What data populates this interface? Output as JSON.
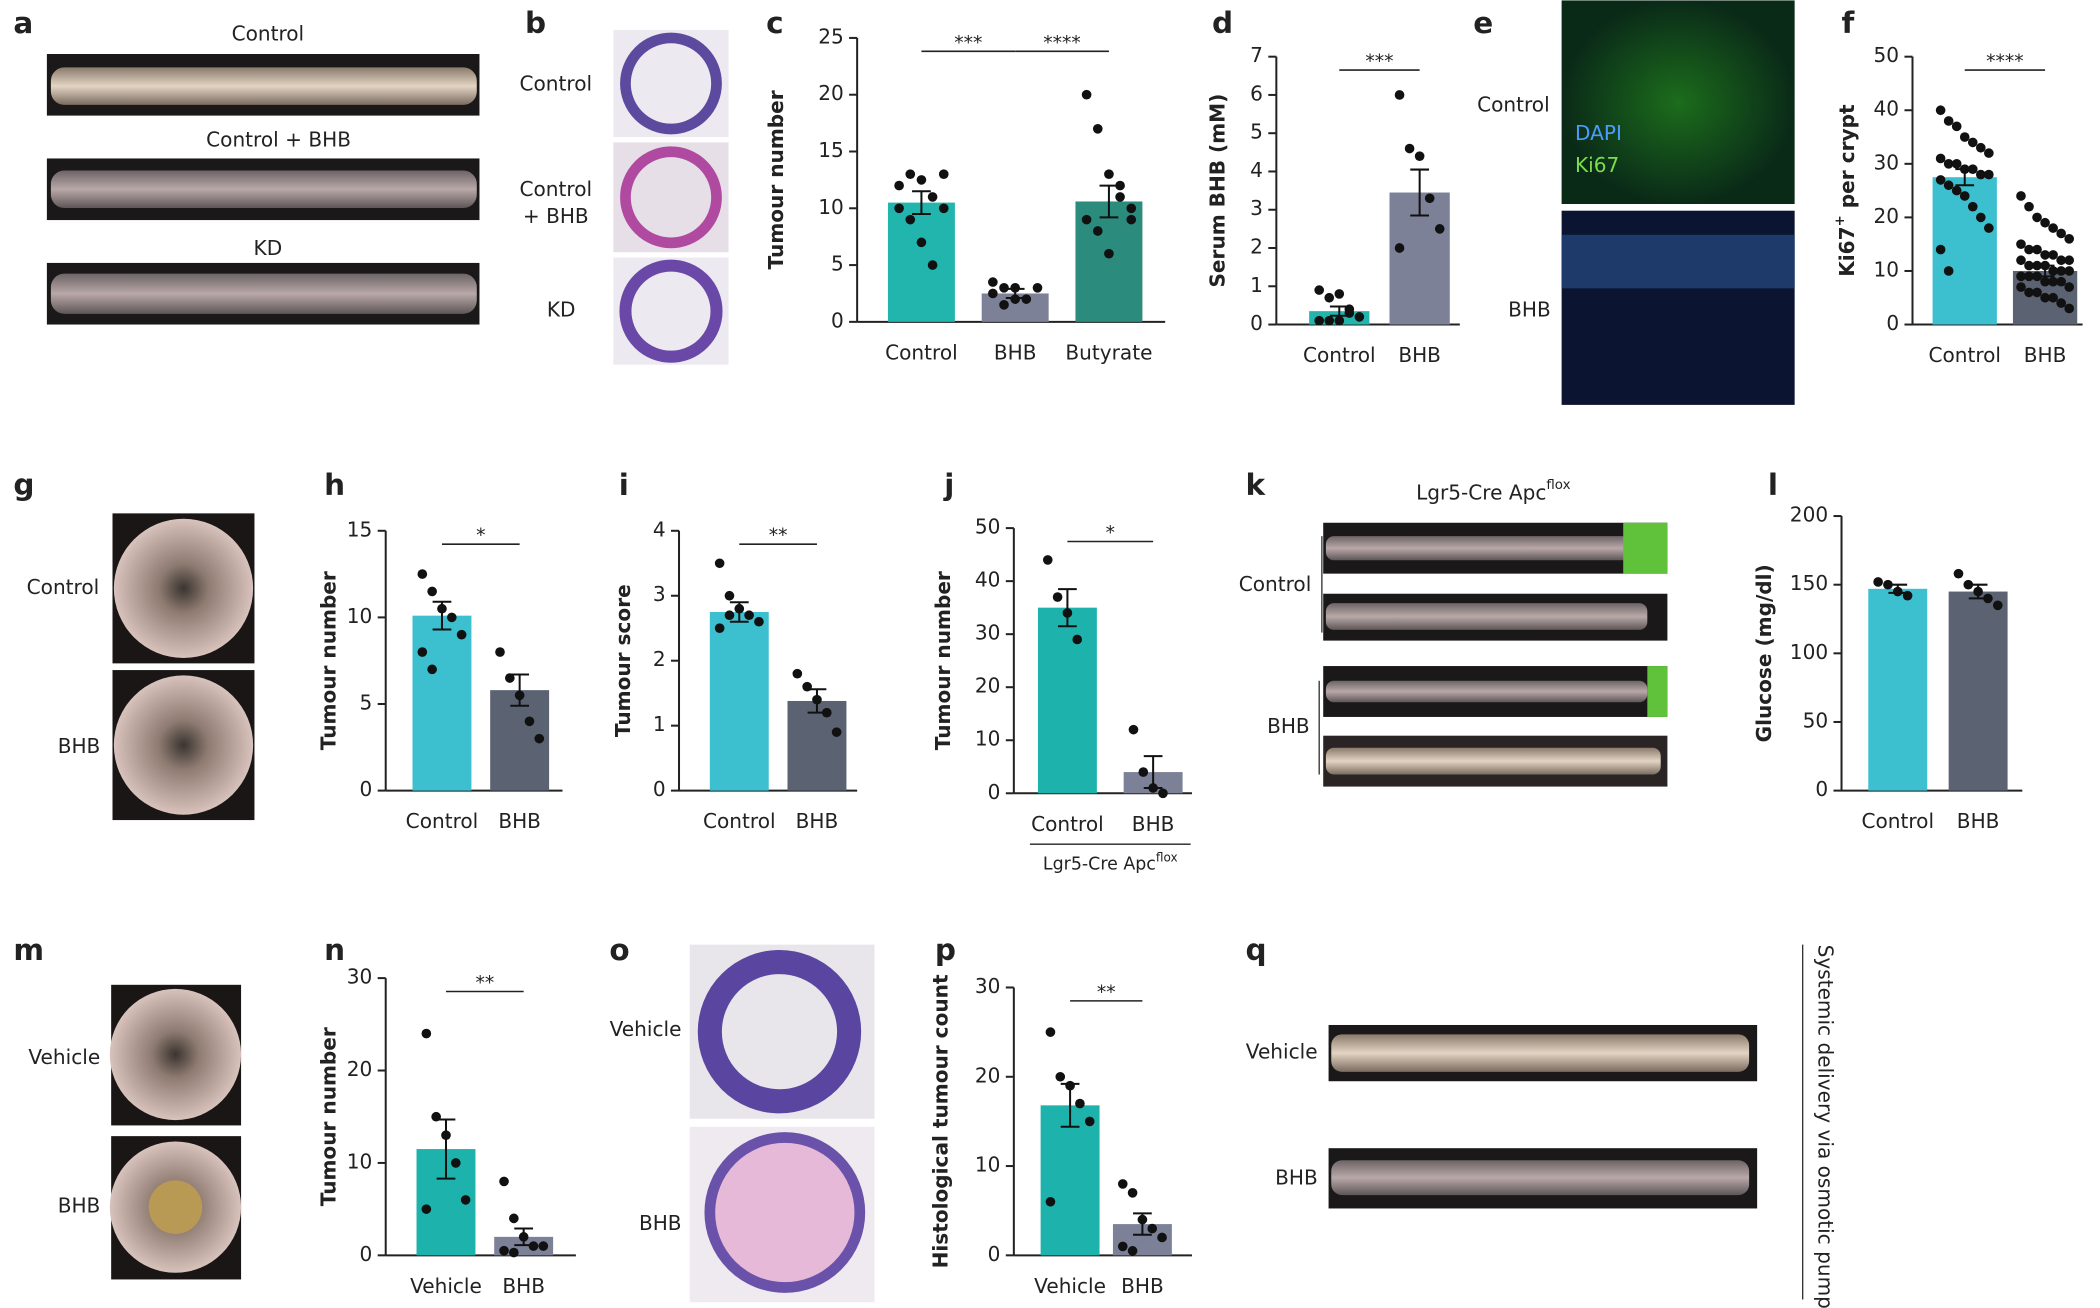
{
  "chart_data": [
    {
      "type": "bar",
      "panel": "c",
      "ylabel": "Tumour number",
      "categories": [
        "Control",
        "BHB",
        "Butyrate"
      ],
      "values": [
        10.5,
        2.5,
        10.6
      ],
      "errors": [
        1.0,
        0.4,
        1.4
      ],
      "colors": [
        "#22b5ae",
        "#7d8198",
        "#2b8b7d"
      ],
      "points": [
        [
          12,
          13,
          12.5,
          11,
          13,
          10,
          9,
          7,
          5,
          10
        ],
        [
          3.5,
          3,
          2,
          2,
          3,
          2.5,
          1.5,
          3
        ],
        [
          20,
          17,
          13,
          12,
          10,
          9,
          8,
          6,
          11,
          9
        ]
      ],
      "ylim": [
        0,
        25
      ],
      "yticks": [
        0,
        5,
        10,
        15,
        20,
        25
      ],
      "significance": [
        {
          "from": "Control",
          "to": "BHB",
          "label": "***"
        },
        {
          "from": "BHB",
          "to": "Butyrate",
          "label": "****"
        }
      ]
    },
    {
      "type": "bar",
      "panel": "d",
      "ylabel": "Serum BHB (mM)",
      "categories": [
        "Control",
        "BHB"
      ],
      "values": [
        0.35,
        3.45
      ],
      "errors": [
        0.12,
        0.6
      ],
      "colors": [
        "#22b5ae",
        "#7d8198"
      ],
      "points": [
        [
          0.9,
          0.7,
          0.8,
          0.3,
          0.2,
          0.1,
          0.1,
          0.1,
          0.4
        ],
        [
          6,
          4.6,
          4.4,
          3.3,
          2.5,
          2
        ]
      ],
      "ylim": [
        0,
        7
      ],
      "yticks": [
        0,
        1,
        2,
        3,
        4,
        5,
        6,
        7
      ],
      "significance": [
        {
          "from": "Control",
          "to": "BHB",
          "label": "***"
        }
      ]
    },
    {
      "type": "bar",
      "panel": "f",
      "ylabel": "Ki67",
      "ylabel_superscript": "+",
      "ylabel_suffix": " per crypt",
      "categories": [
        "Control",
        "BHB"
      ],
      "values": [
        27.5,
        10
      ],
      "errors": [
        1.5,
        1
      ],
      "colors": [
        "#3cbfcf",
        "#5b6272"
      ],
      "points": [
        [
          40,
          38,
          37,
          35,
          34,
          33,
          32,
          31,
          30,
          30,
          29,
          29,
          28,
          28,
          27,
          26,
          25,
          24,
          22,
          20,
          18,
          14,
          10
        ],
        [
          24,
          22,
          20,
          19,
          18,
          17,
          16,
          15,
          14,
          14,
          13,
          13,
          12,
          12,
          12,
          11,
          11,
          11,
          10,
          10,
          10,
          9,
          9,
          9,
          8,
          8,
          8,
          7,
          7,
          6,
          6,
          5,
          5,
          4,
          3
        ]
      ],
      "ylim": [
        0,
        50
      ],
      "yticks": [
        0,
        10,
        20,
        30,
        40,
        50
      ],
      "significance": [
        {
          "from": "Control",
          "to": "BHB",
          "label": "****"
        }
      ]
    },
    {
      "type": "bar",
      "panel": "h",
      "ylabel": "Tumour number",
      "categories": [
        "Control",
        "BHB"
      ],
      "values": [
        10.1,
        5.8
      ],
      "errors": [
        0.8,
        0.9
      ],
      "colors": [
        "#3cbfcf",
        "#5b6272"
      ],
      "points": [
        [
          12.5,
          11.5,
          10.5,
          10,
          9,
          8,
          7
        ],
        [
          8,
          6.5,
          5.5,
          4,
          3
        ]
      ],
      "ylim": [
        0,
        15
      ],
      "yticks": [
        0,
        5,
        10,
        15
      ],
      "significance": [
        {
          "from": "Control",
          "to": "BHB",
          "label": "*"
        }
      ]
    },
    {
      "type": "bar",
      "panel": "i",
      "ylabel": "Tumour score",
      "categories": [
        "Control",
        "BHB"
      ],
      "values": [
        2.75,
        1.38
      ],
      "errors": [
        0.15,
        0.18
      ],
      "colors": [
        "#3cbfcf",
        "#5b6272"
      ],
      "points": [
        [
          3.5,
          3,
          2.8,
          2.7,
          2.6,
          2.5,
          2.7
        ],
        [
          1.8,
          1.6,
          1.4,
          1.2,
          0.9
        ]
      ],
      "ylim": [
        0,
        4
      ],
      "yticks": [
        0,
        1,
        2,
        3,
        4
      ],
      "significance": [
        {
          "from": "Control",
          "to": "BHB",
          "label": "**"
        }
      ]
    },
    {
      "type": "bar",
      "panel": "j",
      "ylabel": "Tumour number",
      "categories": [
        "Control",
        "BHB"
      ],
      "values": [
        35,
        4
      ],
      "errors": [
        3.5,
        3
      ],
      "colors": [
        "#1db3ac",
        "#7d8198"
      ],
      "points": [
        [
          44,
          37,
          34,
          29
        ],
        [
          12,
          4,
          1,
          0
        ]
      ],
      "group_label": "Lgr5-Cre Apc",
      "group_label_superscript": "flox",
      "ylim": [
        0,
        50
      ],
      "yticks": [
        0,
        10,
        20,
        30,
        40,
        50
      ],
      "significance": [
        {
          "from": "Control",
          "to": "BHB",
          "label": "*"
        }
      ]
    },
    {
      "type": "bar",
      "panel": "l",
      "ylabel": "Glucose (mg/dl)",
      "categories": [
        "Control",
        "BHB"
      ],
      "values": [
        147,
        145
      ],
      "errors": [
        3,
        5
      ],
      "colors": [
        "#3cbfcf",
        "#5b6272"
      ],
      "points": [
        [
          152,
          150,
          145,
          142
        ],
        [
          158,
          150,
          145,
          140,
          135
        ]
      ],
      "ylim": [
        0,
        200
      ],
      "yticks": [
        0,
        50,
        100,
        150,
        200
      ],
      "significance": []
    },
    {
      "type": "bar",
      "panel": "n",
      "ylabel": "Tumour number",
      "categories": [
        "Vehicle",
        "BHB"
      ],
      "values": [
        11.5,
        2
      ],
      "errors": [
        3.2,
        0.9
      ],
      "colors": [
        "#1db3ac",
        "#7d8198"
      ],
      "points": [
        [
          24,
          15,
          13,
          10,
          6,
          5
        ],
        [
          8,
          4,
          2,
          1,
          1,
          0.5,
          0.3
        ]
      ],
      "ylim": [
        0,
        30
      ],
      "yticks": [
        0,
        10,
        20,
        30
      ],
      "significance": [
        {
          "from": "Vehicle",
          "to": "BHB",
          "label": "**"
        }
      ]
    },
    {
      "type": "bar",
      "panel": "p",
      "ylabel": "Histological tumour count",
      "categories": [
        "Vehicle",
        "BHB"
      ],
      "values": [
        16.8,
        3.5
      ],
      "errors": [
        2.4,
        1.2
      ],
      "colors": [
        "#1db3ac",
        "#7d8198"
      ],
      "points": [
        [
          25,
          20,
          19,
          17,
          15,
          6
        ],
        [
          8,
          7,
          4,
          3,
          2,
          1,
          0.5
        ]
      ],
      "ylim": [
        0,
        30
      ],
      "yticks": [
        0,
        10,
        20,
        30
      ],
      "significance": [
        {
          "from": "Vehicle",
          "to": "BHB",
          "label": "**"
        }
      ]
    }
  ],
  "image_panels": [
    {
      "panel": "a",
      "labels": [
        "Control",
        "Control + BHB",
        "KD"
      ]
    },
    {
      "panel": "b",
      "labels": [
        "Control",
        "Control",
        "+ BHB",
        "KD"
      ]
    },
    {
      "panel": "e",
      "labels": [
        "Control",
        "BHB"
      ],
      "stains": [
        "DAPI",
        "Ki67"
      ]
    },
    {
      "panel": "g",
      "labels": [
        "Control",
        "BHB"
      ]
    },
    {
      "panel": "k",
      "title": "Lgr5-Cre Apc",
      "title_superscript": "flox",
      "labels": [
        "Control",
        "BHB"
      ]
    },
    {
      "panel": "m",
      "labels": [
        "Vehicle",
        "BHB"
      ]
    },
    {
      "panel": "o",
      "labels": [
        "Vehicle",
        "BHB"
      ]
    },
    {
      "panel": "q",
      "labels": [
        "Vehicle",
        "BHB"
      ],
      "note": "Systemic delivery via osmotic pumps"
    }
  ]
}
